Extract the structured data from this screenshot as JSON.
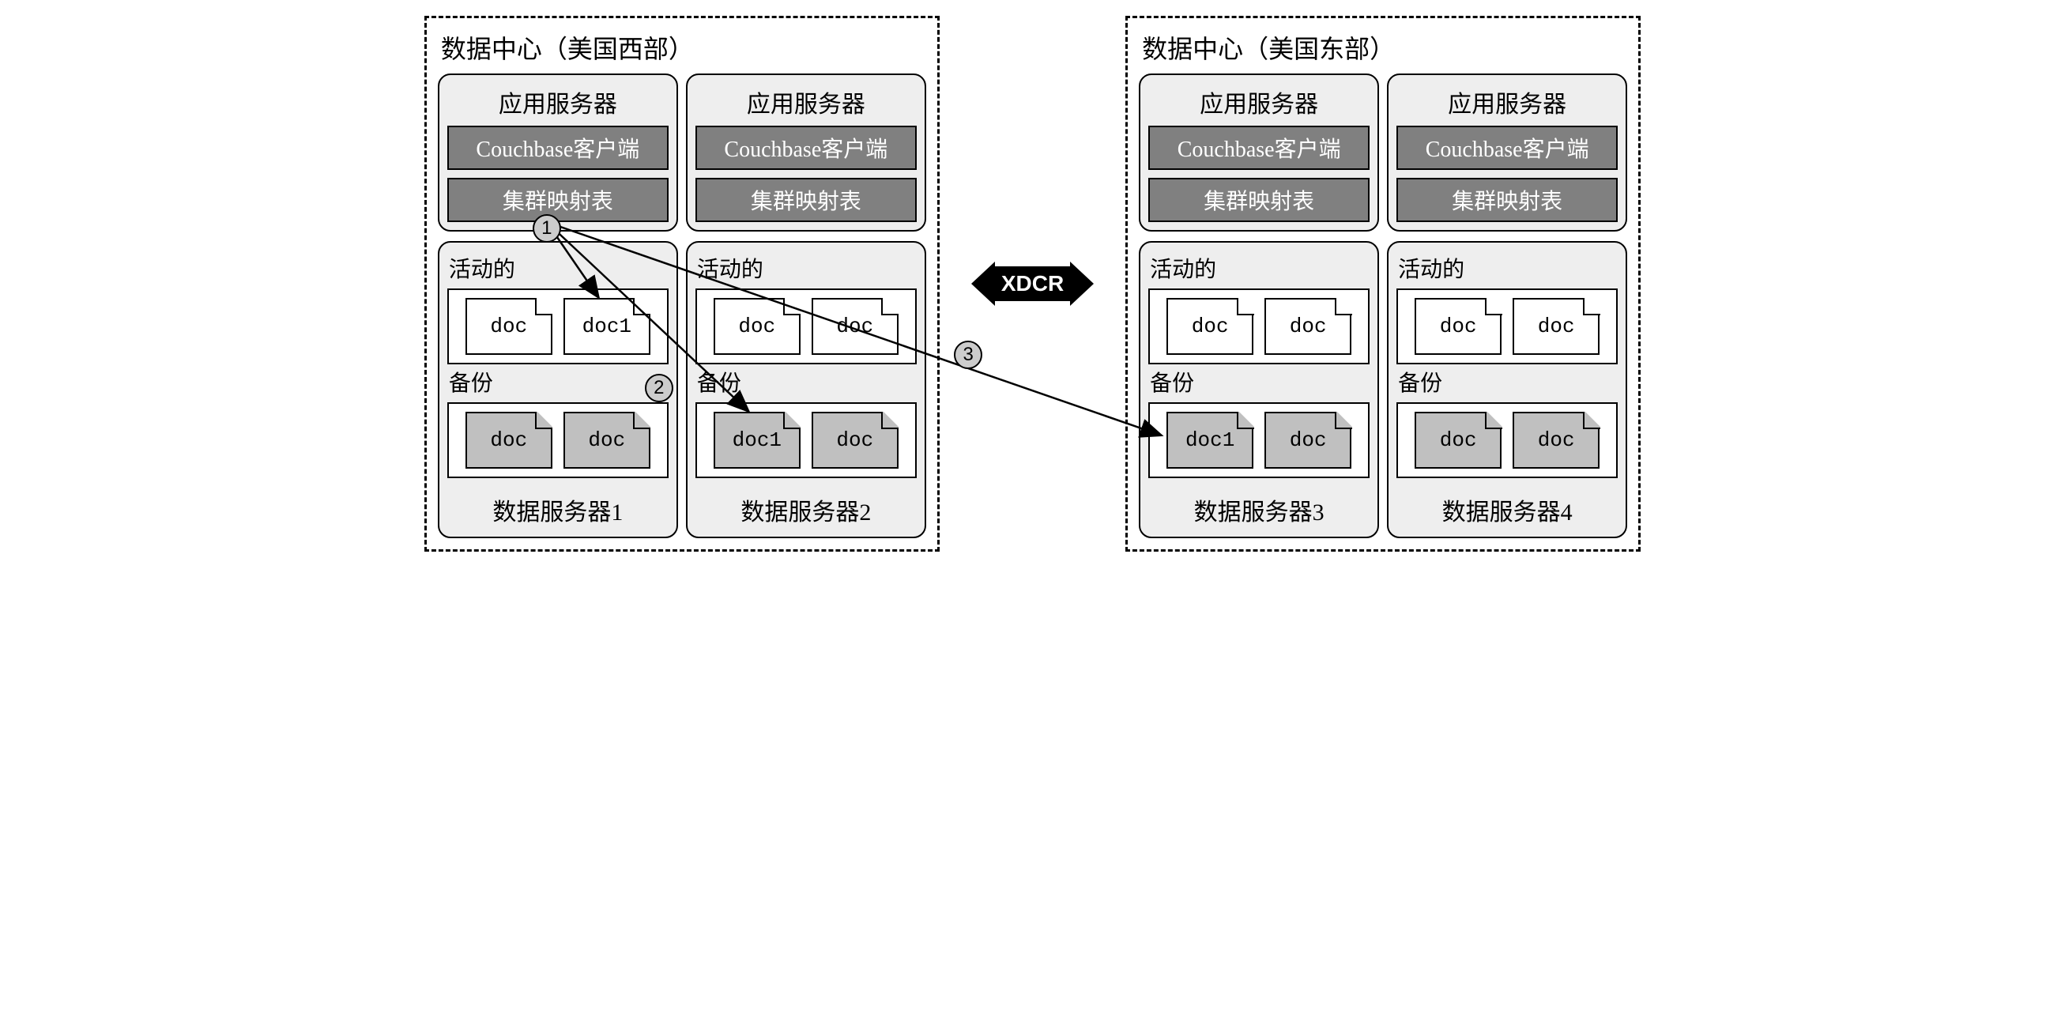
{
  "colors": {
    "background": "#ffffff",
    "box_bg": "#eeeeee",
    "bar_bg": "#808080",
    "bar_fg": "#ffffff",
    "replica_doc": "#c0c0c0",
    "circle_bg": "#cccccc",
    "stroke": "#000000"
  },
  "typography": {
    "title_fontsize": 32,
    "label_fontsize": 28,
    "doc_font": "Courier New"
  },
  "datacenters": [
    {
      "title": "数据中心（美国西部）",
      "servers": [
        {
          "app_title": "应用服务器",
          "client_label": "Couchbase客户端",
          "map_label": "集群映射表",
          "active_label": "活动的",
          "active_docs": [
            "doc",
            "doc1"
          ],
          "replica_label": "备份",
          "replica_docs": [
            "doc",
            "doc"
          ],
          "footer": "数据服务器1"
        },
        {
          "app_title": "应用服务器",
          "client_label": "Couchbase客户端",
          "map_label": "集群映射表",
          "active_label": "活动的",
          "active_docs": [
            "doc",
            "doc"
          ],
          "replica_label": "备份",
          "replica_docs": [
            "doc1",
            "doc"
          ],
          "footer": "数据服务器2"
        }
      ]
    },
    {
      "title": "数据中心（美国东部）",
      "servers": [
        {
          "app_title": "应用服务器",
          "client_label": "Couchbase客户端",
          "map_label": "集群映射表",
          "active_label": "活动的",
          "active_docs": [
            "doc",
            "doc"
          ],
          "replica_label": "备份",
          "replica_docs": [
            "doc1",
            "doc"
          ],
          "footer": "数据服务器3"
        },
        {
          "app_title": "应用服务器",
          "client_label": "Couchbase客户端",
          "map_label": "集群映射表",
          "active_label": "活动的",
          "active_docs": [
            "doc",
            "doc"
          ],
          "replica_label": "备份",
          "replica_docs": [
            "doc",
            "doc"
          ],
          "footer": "数据服务器4"
        }
      ]
    }
  ],
  "xdcr_label": "XDCR",
  "steps": {
    "s1": "1",
    "s2": "2",
    "s3": "3"
  },
  "arrows": {
    "stroke_width": 2.5,
    "from": "cluster-map-west-1",
    "targets": [
      "active doc1 server1",
      "replica doc1 server2",
      "replica doc1 server3"
    ]
  }
}
